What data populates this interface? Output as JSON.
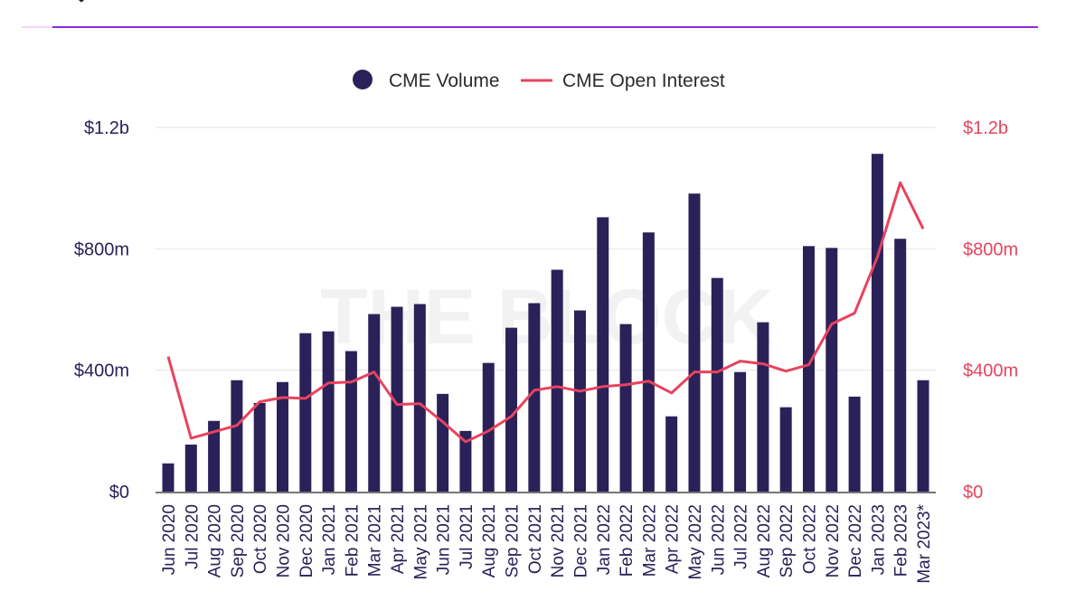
{
  "chart_data": {
    "type": "bar",
    "title": "",
    "watermark": "THE BLOCK",
    "categories": [
      "Jun 2020",
      "Jul 2020",
      "Aug 2020",
      "Sep 2020",
      "Oct 2020",
      "Nov 2020",
      "Dec 2020",
      "Jan 2021",
      "Feb 2021",
      "Mar 2021",
      "Apr 2021",
      "May 2021",
      "Jun 2021",
      "Jul 2021",
      "Aug 2021",
      "Sep 2021",
      "Oct 2021",
      "Nov 2021",
      "Dec 2021",
      "Jan 2022",
      "Feb 2022",
      "Mar 2022",
      "Apr 2022",
      "May 2022",
      "Jun 2022",
      "Jul 2022",
      "Aug 2022",
      "Sep 2022",
      "Oct 2022",
      "Nov 2022",
      "Dec 2022",
      "Jan 2023",
      "Feb 2023",
      "Mar 2023*"
    ],
    "series": [
      {
        "name": "CME Volume",
        "type": "bar",
        "axis": "left",
        "color": "#2a2158",
        "unit": "USD millions",
        "values": [
          93,
          155,
          233,
          367,
          292,
          361,
          522,
          528,
          463,
          585,
          609,
          618,
          322,
          200,
          424,
          540,
          621,
          731,
          597,
          904,
          552,
          854,
          248,
          982,
          704,
          394,
          558,
          278,
          809,
          803,
          313,
          1113,
          833,
          367
        ]
      },
      {
        "name": "CME Open Interest",
        "type": "line",
        "axis": "right",
        "color": "#e8435f",
        "unit": "USD millions",
        "values": [
          445,
          176,
          197,
          218,
          296,
          310,
          307,
          358,
          361,
          394,
          287,
          290,
          230,
          164,
          200,
          248,
          334,
          346,
          331,
          346,
          352,
          364,
          325,
          394,
          394,
          430,
          421,
          397,
          418,
          552,
          588,
          773,
          1018,
          866
        ]
      }
    ],
    "y_left": {
      "ticks": [
        0,
        400,
        800,
        1200
      ],
      "tick_labels": [
        "$0",
        "$400m",
        "$800m",
        "$1.2b"
      ],
      "ylim": [
        0,
        1200
      ]
    },
    "y_right": {
      "ticks": [
        0,
        400,
        800,
        1200
      ],
      "tick_labels": [
        "$0",
        "$400m",
        "$800m",
        "$1.2b"
      ],
      "ylim": [
        0,
        1200
      ]
    },
    "grid": true,
    "legend": "top-center",
    "xlabel": "",
    "ylabel": ""
  }
}
